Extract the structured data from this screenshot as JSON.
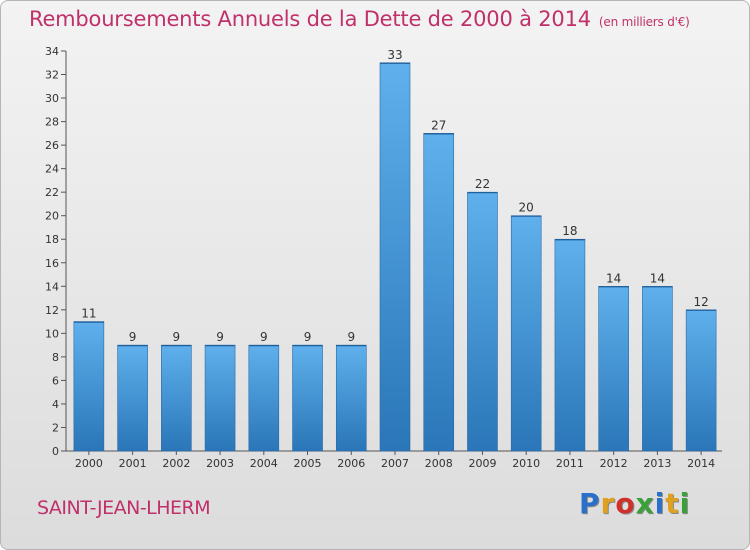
{
  "header": {
    "title": "Remboursements Annuels de la Dette de 2000 à 2014",
    "subtitle": "(en milliers d'€)"
  },
  "footer": {
    "commune": "SAINT-JEAN-LHERM",
    "brand": "Proxiti"
  },
  "colors": {
    "bar_top": "#5fb0ec",
    "bar_bottom": "#2a76b8",
    "title": "#c0306a"
  },
  "chart_data": {
    "type": "bar",
    "categories": [
      "2000",
      "2001",
      "2002",
      "2003",
      "2004",
      "2005",
      "2006",
      "2007",
      "2008",
      "2009",
      "2010",
      "2011",
      "2012",
      "2013",
      "2014"
    ],
    "values": [
      11,
      9,
      9,
      9,
      9,
      9,
      9,
      33,
      27,
      22,
      20,
      18,
      14,
      14,
      12
    ],
    "data_labels": [
      "11",
      "9",
      "9",
      "9",
      "9",
      "9",
      "9",
      "33",
      "27",
      "22",
      "20",
      "18",
      "14",
      "14",
      "12"
    ],
    "ylim": [
      0,
      34
    ],
    "yticks": [
      0,
      2,
      4,
      6,
      8,
      10,
      12,
      14,
      16,
      18,
      20,
      22,
      24,
      26,
      28,
      30,
      32,
      34
    ],
    "grid": false,
    "legend": "none"
  }
}
